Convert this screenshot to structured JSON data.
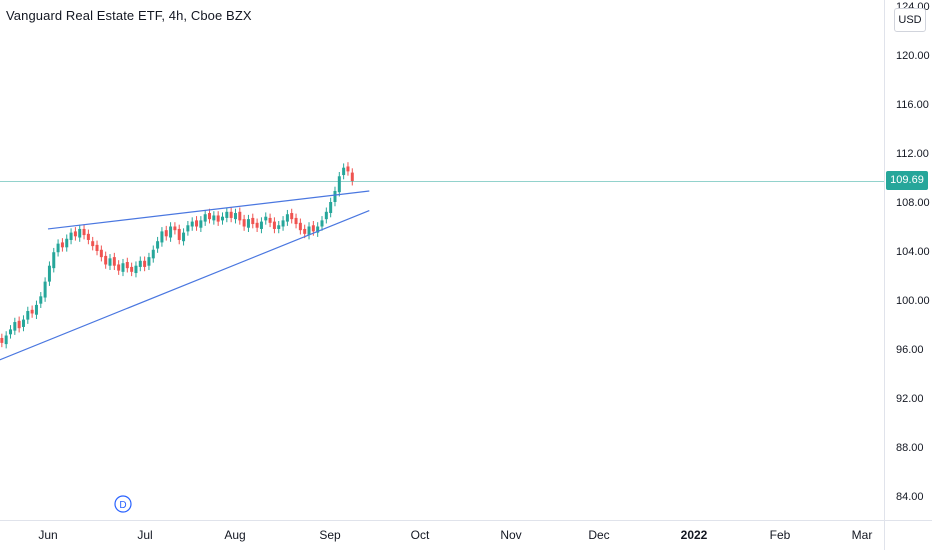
{
  "chart_data": {
    "type": "candlestick",
    "title": "Vanguard Real Estate ETF, 4h, Cboe BZX",
    "currency": "USD",
    "last_price": "109.69",
    "y_ticks": [
      "124.00",
      "120.00",
      "116.00",
      "112.00",
      "108.00",
      "104.00",
      "100.00",
      "96.00",
      "92.00",
      "88.00",
      "84.00"
    ],
    "y_tick_values": [
      124,
      120,
      116,
      112,
      108,
      104,
      100,
      96,
      92,
      88,
      84
    ],
    "x_ticks": [
      "Jun",
      "Jul",
      "Aug",
      "Sep",
      "Oct",
      "Nov",
      "Dec",
      "2022",
      "Feb",
      "Mar"
    ],
    "x_tick_bold": [
      false,
      false,
      false,
      false,
      false,
      false,
      false,
      true,
      false,
      false
    ],
    "dividend_marker": "D",
    "colors": {
      "up": "#26a69a",
      "down": "#ef5350",
      "trendline": "#4a77e0",
      "price_line": "#26a69a",
      "axis_text": "#131722",
      "divider": "#e0e3eb"
    },
    "trendlines": [
      {
        "name": "upper",
        "from": {
          "month": 0.0,
          "price": 105.8
        },
        "to": {
          "month": 3.4,
          "price": 108.9
        }
      },
      {
        "name": "lower",
        "from": {
          "month": -0.58,
          "price": 94.9
        },
        "to": {
          "month": 3.4,
          "price": 107.3
        }
      }
    ],
    "candles_close": [
      96.2,
      96.8,
      96.5,
      97.1,
      97.6,
      98.2,
      97.7,
      98.4,
      99.1,
      98.9,
      99.6,
      100.3,
      101.5,
      102.8,
      103.9,
      104.6,
      104.3,
      105.0,
      105.5,
      105.2,
      105.8,
      105.3,
      104.9,
      104.4,
      104.0,
      103.5,
      102.9,
      103.4,
      102.8,
      102.4,
      103.0,
      102.6,
      102.3,
      102.8,
      103.2,
      102.7,
      103.5,
      104.1,
      104.8,
      105.6,
      105.2,
      106.0,
      105.7,
      104.9,
      105.5,
      106.1,
      106.4,
      106.0,
      106.5,
      107.0,
      106.6,
      106.9,
      106.4,
      106.8,
      107.2,
      106.7,
      107.1,
      106.5,
      106.0,
      106.6,
      106.2,
      105.9,
      106.4,
      106.8,
      106.3,
      105.8,
      106.1,
      106.5,
      107.0,
      106.6,
      106.2,
      105.7,
      105.4,
      106.0,
      105.6,
      106.0,
      106.5,
      107.2,
      108.0,
      108.9,
      110.1,
      110.8,
      110.5,
      109.7
    ],
    "candles_open": [
      95.8,
      96.2,
      96.9,
      96.4,
      97.2,
      97.5,
      98.3,
      97.8,
      98.4,
      99.2,
      98.8,
      99.7,
      100.2,
      101.5,
      102.6,
      103.9,
      104.7,
      104.3,
      104.9,
      105.6,
      105.1,
      105.8,
      105.4,
      104.8,
      104.5,
      104.1,
      103.6,
      102.8,
      103.5,
      102.9,
      102.3,
      103.1,
      102.7,
      102.2,
      102.7,
      103.2,
      102.8,
      103.4,
      104.2,
      104.7,
      105.7,
      105.1,
      106.0,
      105.8,
      104.8,
      105.6,
      106.0,
      106.5,
      105.9,
      106.4,
      107.1,
      106.5,
      106.9,
      106.5,
      106.7,
      107.2,
      106.6,
      107.2,
      106.6,
      105.9,
      106.7,
      106.3,
      105.8,
      106.5,
      106.7,
      106.4,
      105.8,
      106.0,
      106.4,
      107.1,
      106.7,
      106.3,
      105.8,
      105.3,
      106.1,
      105.5,
      106.0,
      106.6,
      107.1,
      108.0,
      108.8,
      110.2,
      110.9,
      110.4
    ],
    "month_start": -0.58,
    "month_end": 3.22
  }
}
